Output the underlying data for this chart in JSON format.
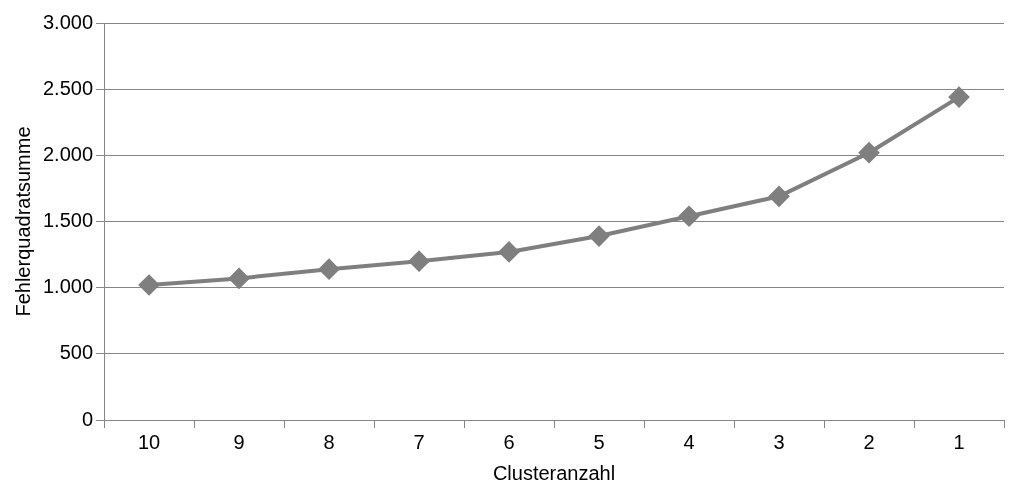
{
  "chart_data": {
    "type": "line",
    "xlabel": "Clusteranzahl",
    "ylabel": "Fehlerquadratsumme",
    "categories": [
      "10",
      "9",
      "8",
      "7",
      "6",
      "5",
      "4",
      "3",
      "2",
      "1"
    ],
    "series": [
      {
        "color": "#7f7f7f",
        "values": [
          1020,
          1070,
          1140,
          1200,
          1270,
          1390,
          1540,
          1690,
          2020,
          2440
        ]
      }
    ],
    "ylim": [
      0,
      3000
    ],
    "yticks": [
      0,
      500,
      {
        "value": 1000,
        "label": "1.000"
      },
      {
        "value": 1500,
        "label": "1.500"
      },
      {
        "value": 2000,
        "label": "2.000"
      },
      {
        "value": 2500,
        "label": "2.500"
      },
      {
        "value": 3000,
        "label": "3.000"
      }
    ],
    "grid": "y",
    "marker": "diamond",
    "line_style": "solid",
    "legend": false
  }
}
